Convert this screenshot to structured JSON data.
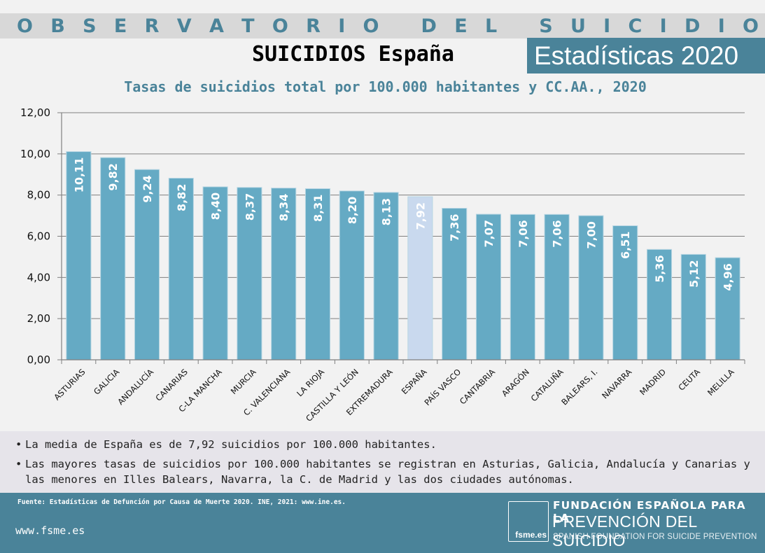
{
  "header": {
    "observatory_letters": [
      "O",
      "B",
      "S",
      "E",
      "R",
      "V",
      "A",
      "T",
      "O",
      "R",
      "I",
      "O",
      "",
      "D",
      "E",
      "L",
      "",
      "S",
      "U",
      "I",
      "C",
      "I",
      "D",
      "I",
      "O"
    ],
    "observatory_title": "OBSERVATORIO DEL SUICIDIO",
    "subheading": "SUICIDIOS España",
    "stats_label": "Estadísticas 2020"
  },
  "colors": {
    "accent": "#4a8399",
    "bar": "#65aac4",
    "bar_highlight": "#c9d9ee",
    "grid": "#808080"
  },
  "chart_data": {
    "type": "bar",
    "title": "Tasas de suicidios total por 100.000 habitantes y CC.AA., 2020",
    "xlabel": "",
    "ylabel": "",
    "ylim": [
      0,
      12
    ],
    "yticks": [
      0,
      2,
      4,
      6,
      8,
      10,
      12
    ],
    "ytick_labels": [
      "0,00",
      "2,00",
      "4,00",
      "6,00",
      "8,00",
      "10,00",
      "12,00"
    ],
    "grid": true,
    "legend": "none",
    "categories": [
      "ASTURIAS",
      "GALICIA",
      "ANDALUCÍA",
      "CANARIAS",
      "C-LA MANCHA",
      "MURCIA",
      "C. VALENCIANA",
      "LA RIOJA",
      "CASTILLA Y LEÓN",
      "EXTREMADURA",
      "ESPAÑA",
      "PAÍS VASCO",
      "CANTABRIA",
      "ARAGÓN",
      "CATALUÑA",
      "BALEARS, I.",
      "NAVARRA",
      "MADRID",
      "CEUTA",
      "MELILLA"
    ],
    "values": [
      10.11,
      9.82,
      9.24,
      8.82,
      8.4,
      8.37,
      8.34,
      8.31,
      8.2,
      8.13,
      7.92,
      7.36,
      7.07,
      7.06,
      7.06,
      7.0,
      6.51,
      5.36,
      5.12,
      4.96
    ],
    "value_labels": [
      "10,11",
      "9,82",
      "9,24",
      "8,82",
      "8,40",
      "8,37",
      "8,34",
      "8,31",
      "8,20",
      "8,13",
      "7,92",
      "7,36",
      "7,07",
      "7,06",
      "7,06",
      "7,00",
      "6,51",
      "5,36",
      "5,12",
      "4,96"
    ],
    "highlight_category": "ESPAÑA"
  },
  "notes": [
    "La media de España es de 7,92 suicidios por 100.000 habitantes.",
    "Las mayores tasas de suicidios por 100.000 habitantes se registran en Asturias, Galicia, Andalucía y Canarias y las menores en Illes Balears, Navarra, la C. de Madrid y las dos ciudades autónomas."
  ],
  "note_bullet": "•",
  "footer": {
    "source": "Fuente: Estadísticas de Defunción por Causa de Muerte 2020. INE, 2021: www.ine.es.",
    "website": "www.fsme.es",
    "logo_text": "fsme.es",
    "org_line1": "FUNDACIÓN ESPAÑOLA PARA LA",
    "org_line2": "PREVENCIÓN DEL SUICIDIO",
    "org_line3": "SPANISH FOUNDATION FOR SUICIDE PREVENTION"
  }
}
